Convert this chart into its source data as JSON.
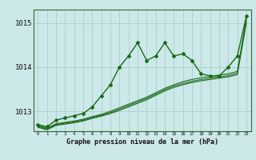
{
  "title": "Graphe pression niveau de la mer (hPa)",
  "background_color": "#cce8e8",
  "grid_color": "#aacfcf",
  "line_color": "#1a6b1a",
  "x_ticks": [
    0,
    1,
    2,
    3,
    4,
    5,
    6,
    7,
    8,
    9,
    10,
    11,
    12,
    13,
    14,
    15,
    16,
    17,
    18,
    19,
    20,
    21,
    22,
    23
  ],
  "ylim": [
    1012.55,
    1015.3
  ],
  "yticks": [
    1013,
    1014,
    1015
  ],
  "series1": [
    1012.7,
    1012.65,
    1012.8,
    1012.85,
    1012.9,
    1012.95,
    1013.1,
    1013.35,
    1013.6,
    1014.0,
    1014.25,
    1014.55,
    1014.15,
    1014.25,
    1014.55,
    1014.25,
    1014.3,
    1014.15,
    1013.85,
    1013.8,
    1013.8,
    1014.0,
    1014.25,
    1015.15
  ],
  "series2": [
    1012.68,
    1012.62,
    1012.72,
    1012.75,
    1012.78,
    1012.82,
    1012.88,
    1012.93,
    1013.0,
    1013.08,
    1013.16,
    1013.24,
    1013.32,
    1013.42,
    1013.52,
    1013.6,
    1013.67,
    1013.72,
    1013.76,
    1013.79,
    1013.82,
    1013.85,
    1013.9,
    1015.1
  ],
  "series3": [
    1012.66,
    1012.6,
    1012.7,
    1012.73,
    1012.76,
    1012.8,
    1012.86,
    1012.91,
    1012.97,
    1013.05,
    1013.13,
    1013.21,
    1013.29,
    1013.39,
    1013.49,
    1013.57,
    1013.63,
    1013.68,
    1013.72,
    1013.75,
    1013.78,
    1013.81,
    1013.86,
    1015.05
  ],
  "series4": [
    1012.64,
    1012.58,
    1012.68,
    1012.71,
    1012.74,
    1012.78,
    1012.84,
    1012.89,
    1012.95,
    1013.02,
    1013.1,
    1013.18,
    1013.26,
    1013.36,
    1013.46,
    1013.54,
    1013.6,
    1013.65,
    1013.69,
    1013.72,
    1013.75,
    1013.78,
    1013.83,
    1015.0
  ]
}
